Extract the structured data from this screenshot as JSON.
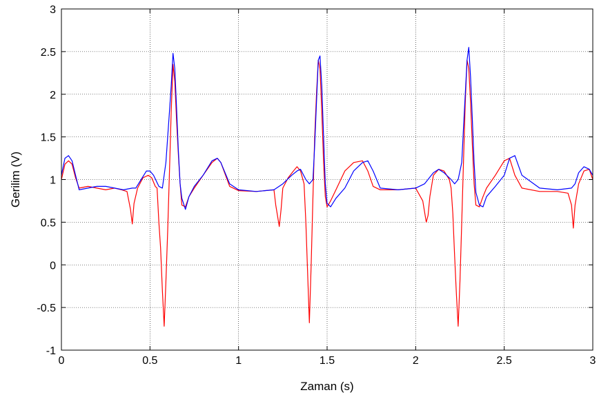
{
  "chart_data": {
    "type": "line",
    "title": "",
    "xlabel": "Zaman (s)",
    "ylabel": "Gerilim (V)",
    "xlim": [
      0,
      3
    ],
    "ylim": [
      -1,
      3
    ],
    "grid": true,
    "legend": "none",
    "x_ticks": [
      0,
      0.5,
      1,
      1.5,
      2,
      2.5,
      3
    ],
    "x_tick_labels": [
      "0",
      "0.5",
      "1",
      "1.5",
      "2",
      "2.5",
      "3"
    ],
    "y_ticks": [
      -1,
      -0.5,
      0,
      0.5,
      1,
      1.5,
      2,
      2.5,
      3
    ],
    "y_tick_labels": [
      "-1",
      "-0.5",
      "0",
      "0.5",
      "1",
      "1.5",
      "2",
      "2.5",
      "3"
    ],
    "series": [
      {
        "color": "#ff0000",
        "x": [
          0,
          0.02,
          0.04,
          0.06,
          0.08,
          0.1,
          0.15,
          0.2,
          0.25,
          0.3,
          0.34,
          0.37,
          0.39,
          0.4,
          0.41,
          0.43,
          0.46,
          0.49,
          0.51,
          0.53,
          0.54,
          0.55,
          0.56,
          0.57,
          0.58,
          0.59,
          0.6,
          0.61,
          0.62,
          0.63,
          0.64,
          0.65,
          0.66,
          0.67,
          0.68,
          0.7,
          0.72,
          0.75,
          0.8,
          0.85,
          0.88,
          0.9,
          0.95,
          1.0,
          1.1,
          1.2,
          1.21,
          1.23,
          1.24,
          1.25,
          1.28,
          1.31,
          1.33,
          1.35,
          1.37,
          1.38,
          1.39,
          1.4,
          1.41,
          1.42,
          1.43,
          1.44,
          1.45,
          1.46,
          1.47,
          1.48,
          1.49,
          1.5,
          1.52,
          1.55,
          1.6,
          1.65,
          1.7,
          1.73,
          1.76,
          1.8,
          1.9,
          2.0,
          2.04,
          2.06,
          2.07,
          2.08,
          2.1,
          2.13,
          2.16,
          2.19,
          2.2,
          2.21,
          2.22,
          2.23,
          2.24,
          2.25,
          2.26,
          2.27,
          2.28,
          2.29,
          2.3,
          2.31,
          2.32,
          2.33,
          2.34,
          2.36,
          2.38,
          2.4,
          2.45,
          2.5,
          2.53,
          2.56,
          2.6,
          2.7,
          2.8,
          2.86,
          2.88,
          2.89,
          2.9,
          2.92,
          2.95,
          2.98,
          3.0
        ],
        "y": [
          1.0,
          1.18,
          1.22,
          1.18,
          1.02,
          0.9,
          0.92,
          0.9,
          0.88,
          0.9,
          0.88,
          0.86,
          0.65,
          0.48,
          0.72,
          0.9,
          1.02,
          1.05,
          1.02,
          0.92,
          0.9,
          0.5,
          0.2,
          -0.3,
          -0.72,
          -0.2,
          0.4,
          1.1,
          1.8,
          2.35,
          2.15,
          1.7,
          1.3,
          0.95,
          0.7,
          0.68,
          0.8,
          0.9,
          1.05,
          1.2,
          1.25,
          1.2,
          0.92,
          0.87,
          0.86,
          0.88,
          0.7,
          0.45,
          0.65,
          0.9,
          1.02,
          1.1,
          1.15,
          1.1,
          0.95,
          0.5,
          -0.1,
          -0.68,
          0.0,
          0.8,
          1.5,
          2.0,
          2.4,
          2.3,
          1.8,
          1.2,
          0.8,
          0.68,
          0.75,
          0.88,
          1.1,
          1.2,
          1.22,
          1.1,
          0.92,
          0.88,
          0.88,
          0.9,
          0.75,
          0.5,
          0.58,
          0.8,
          1.05,
          1.12,
          1.1,
          1.0,
          0.9,
          0.6,
          0.1,
          -0.35,
          -0.72,
          -0.2,
          0.5,
          1.2,
          1.9,
          2.4,
          2.3,
          1.9,
          1.4,
          0.95,
          0.7,
          0.68,
          0.8,
          0.9,
          1.05,
          1.22,
          1.25,
          1.05,
          0.9,
          0.86,
          0.86,
          0.84,
          0.7,
          0.43,
          0.7,
          0.95,
          1.1,
          1.12,
          1.0
        ]
      },
      {
        "color": "#0000ff",
        "x": [
          0,
          0.02,
          0.04,
          0.06,
          0.08,
          0.1,
          0.15,
          0.2,
          0.25,
          0.3,
          0.35,
          0.4,
          0.42,
          0.45,
          0.48,
          0.5,
          0.52,
          0.55,
          0.57,
          0.59,
          0.6,
          0.61,
          0.62,
          0.63,
          0.64,
          0.65,
          0.66,
          0.67,
          0.68,
          0.7,
          0.72,
          0.75,
          0.8,
          0.85,
          0.88,
          0.9,
          0.95,
          1.0,
          1.1,
          1.2,
          1.25,
          1.3,
          1.33,
          1.35,
          1.38,
          1.4,
          1.42,
          1.43,
          1.44,
          1.45,
          1.46,
          1.47,
          1.48,
          1.49,
          1.5,
          1.52,
          1.55,
          1.6,
          1.65,
          1.7,
          1.73,
          1.76,
          1.8,
          1.9,
          2.0,
          2.05,
          2.1,
          2.13,
          2.16,
          2.2,
          2.22,
          2.24,
          2.26,
          2.27,
          2.28,
          2.29,
          2.3,
          2.31,
          2.32,
          2.33,
          2.34,
          2.36,
          2.38,
          2.4,
          2.45,
          2.5,
          2.53,
          2.56,
          2.6,
          2.7,
          2.8,
          2.88,
          2.9,
          2.92,
          2.95,
          2.98,
          3.0
        ],
        "y": [
          1.05,
          1.25,
          1.28,
          1.22,
          1.05,
          0.88,
          0.9,
          0.92,
          0.92,
          0.9,
          0.88,
          0.9,
          0.9,
          1.0,
          1.1,
          1.1,
          1.05,
          0.92,
          0.9,
          1.2,
          1.5,
          1.8,
          2.1,
          2.48,
          2.3,
          1.85,
          1.35,
          0.95,
          0.78,
          0.65,
          0.8,
          0.92,
          1.05,
          1.22,
          1.25,
          1.2,
          0.95,
          0.88,
          0.86,
          0.88,
          0.95,
          1.05,
          1.1,
          1.12,
          1.0,
          0.95,
          1.0,
          1.4,
          1.9,
          2.4,
          2.45,
          2.1,
          1.5,
          0.95,
          0.72,
          0.68,
          0.78,
          0.9,
          1.1,
          1.2,
          1.22,
          1.1,
          0.9,
          0.88,
          0.9,
          0.95,
          1.08,
          1.12,
          1.08,
          1.0,
          0.95,
          1.0,
          1.2,
          1.6,
          2.0,
          2.4,
          2.55,
          2.2,
          1.7,
          1.2,
          0.85,
          0.7,
          0.68,
          0.8,
          0.92,
          1.05,
          1.25,
          1.28,
          1.05,
          0.9,
          0.88,
          0.9,
          0.95,
          1.08,
          1.15,
          1.12,
          1.05
        ]
      }
    ]
  }
}
